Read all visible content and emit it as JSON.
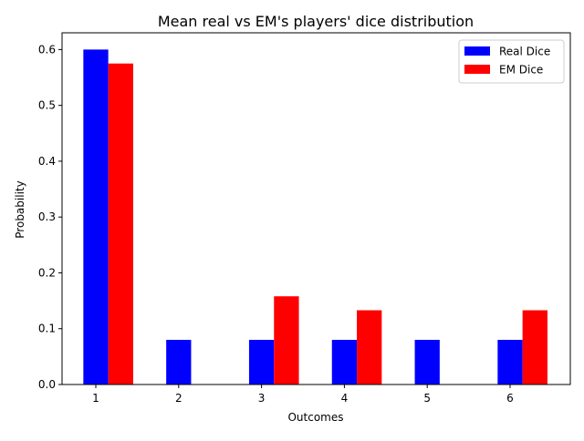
{
  "chart_data": {
    "type": "bar",
    "title": "Mean real vs EM's players' dice distribution",
    "xlabel": "Outcomes",
    "ylabel": "Probability",
    "categories": [
      "1",
      "2",
      "3",
      "4",
      "5",
      "6"
    ],
    "ylim": [
      0,
      0.63
    ],
    "yticks": [
      "0.0",
      "0.1",
      "0.2",
      "0.3",
      "0.4",
      "0.5",
      "0.6"
    ],
    "grid": false,
    "legend_position": "top-right",
    "series": [
      {
        "name": "Real Dice",
        "color": "#0000ff",
        "values": [
          0.6,
          0.08,
          0.08,
          0.08,
          0.08,
          0.08
        ]
      },
      {
        "name": "EM Dice",
        "color": "#ff0000",
        "values": [
          0.575,
          0.0,
          0.158,
          0.133,
          0.0,
          0.133
        ]
      }
    ]
  }
}
